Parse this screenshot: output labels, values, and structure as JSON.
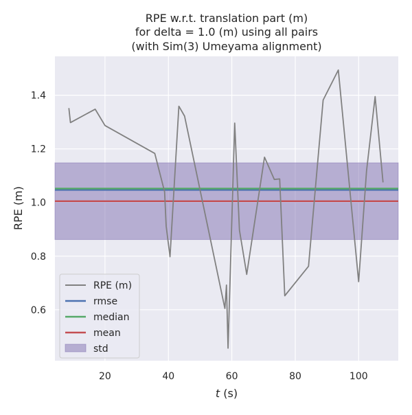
{
  "chart_data": {
    "type": "line",
    "title_lines": [
      "RPE w.r.t. translation part (m)",
      "for delta = 1.0 (m) using all pairs",
      "(with Sim(3) Umeyama alignment)"
    ],
    "xlabel": "t (s)",
    "xlabel_var": "t",
    "xlabel_unit": " (s)",
    "ylabel": "RPE (m)",
    "xlim": [
      4.2,
      112.5
    ],
    "ylim": [
      0.41,
      1.545
    ],
    "xticks": [
      20,
      40,
      60,
      80,
      100
    ],
    "yticks": [
      0.6,
      0.8,
      1.0,
      1.2,
      1.4
    ],
    "ytick_labels": [
      "0.6",
      "0.8",
      "1.0",
      "1.2",
      "1.4"
    ],
    "grid": true,
    "legend_position": "lower-left",
    "series": [
      {
        "name": "RPE (m)",
        "color": "#808080",
        "x": [
          8.6,
          9.1,
          16.9,
          20.0,
          35.7,
          38.8,
          39.3,
          40.5,
          43.3,
          45.1,
          57.8,
          58.3,
          58.8,
          60.9,
          62.4,
          64.7,
          70.3,
          73.4,
          75.1,
          76.7,
          84.2,
          88.8,
          93.6,
          100.0,
          102.5,
          105.2,
          107.7
        ],
        "y": [
          1.352,
          1.298,
          1.348,
          1.287,
          1.183,
          1.04,
          0.912,
          0.798,
          1.359,
          1.322,
          0.605,
          0.692,
          0.457,
          1.296,
          0.897,
          0.732,
          1.169,
          1.086,
          1.088,
          0.652,
          0.762,
          1.382,
          1.494,
          0.705,
          1.118,
          1.395,
          1.075
        ]
      }
    ],
    "stats": {
      "rmse": {
        "name": "rmse",
        "value": 1.047,
        "color": "#4c72b0"
      },
      "median": {
        "name": "median",
        "value": 1.052,
        "color": "#55a868"
      },
      "mean": {
        "name": "mean",
        "value": 1.005,
        "color": "#c44e52"
      },
      "std": {
        "name": "std",
        "lower": 0.862,
        "upper": 1.148,
        "color": "#8172b2"
      }
    },
    "legend_order": [
      "RPE (m)",
      "rmse",
      "median",
      "mean",
      "std"
    ]
  }
}
